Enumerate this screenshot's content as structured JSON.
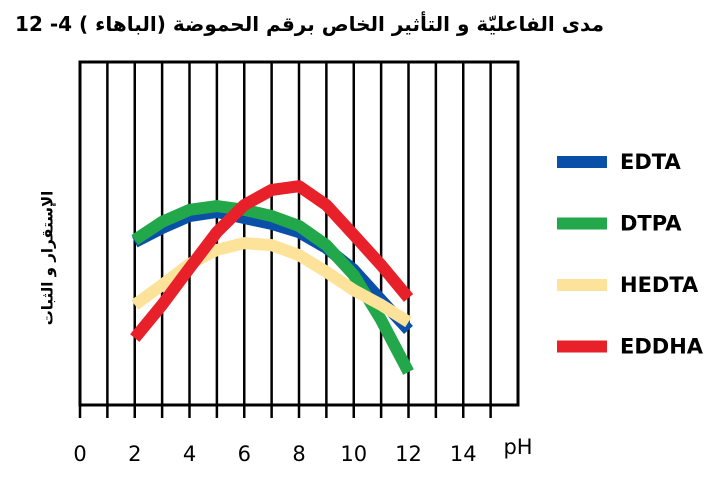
{
  "chart_data": {
    "type": "line",
    "title": "مدى الفاعليّة و التأثير الخاص برقم الحموضة (الباهاء ) 4- 12",
    "x_label": "pH",
    "y_label": "الإستقرار و الثبات",
    "x": [
      2,
      3,
      4,
      5,
      6,
      7,
      8,
      9,
      10,
      11,
      12
    ],
    "series": [
      {
        "name": "EDTA",
        "color": "#0a50a8",
        "values": [
          47.5,
          51.6,
          55.1,
          56.3,
          54.5,
          52.8,
          50.4,
          45.8,
          39.4,
          30.6,
          21.9
        ]
      },
      {
        "name": "DTPA",
        "color": "#22a84a",
        "values": [
          48.1,
          53.4,
          56.9,
          58.0,
          56.9,
          55.1,
          52.2,
          46.6,
          37.9,
          24.8,
          9.6
        ]
      },
      {
        "name": "HEDTA",
        "color": "#fde39a",
        "values": [
          29.2,
          35.0,
          41.1,
          45.2,
          47.2,
          46.6,
          43.7,
          38.8,
          33.5,
          29.2,
          24.2
        ]
      },
      {
        "name": "EDDHA",
        "color": "#e8202a",
        "values": [
          19.5,
          29.2,
          39.9,
          50.4,
          58.3,
          62.7,
          63.8,
          58.3,
          49.6,
          40.8,
          31.2
        ]
      }
    ],
    "xlim": [
      0,
      16
    ],
    "xticks": [
      0,
      2,
      4,
      6,
      8,
      10,
      12,
      14
    ],
    "x_minor_ticks": [
      1,
      3,
      5,
      7,
      9,
      11,
      13,
      15
    ],
    "ylim": [
      0,
      100
    ],
    "grid": true,
    "legend": "right"
  }
}
